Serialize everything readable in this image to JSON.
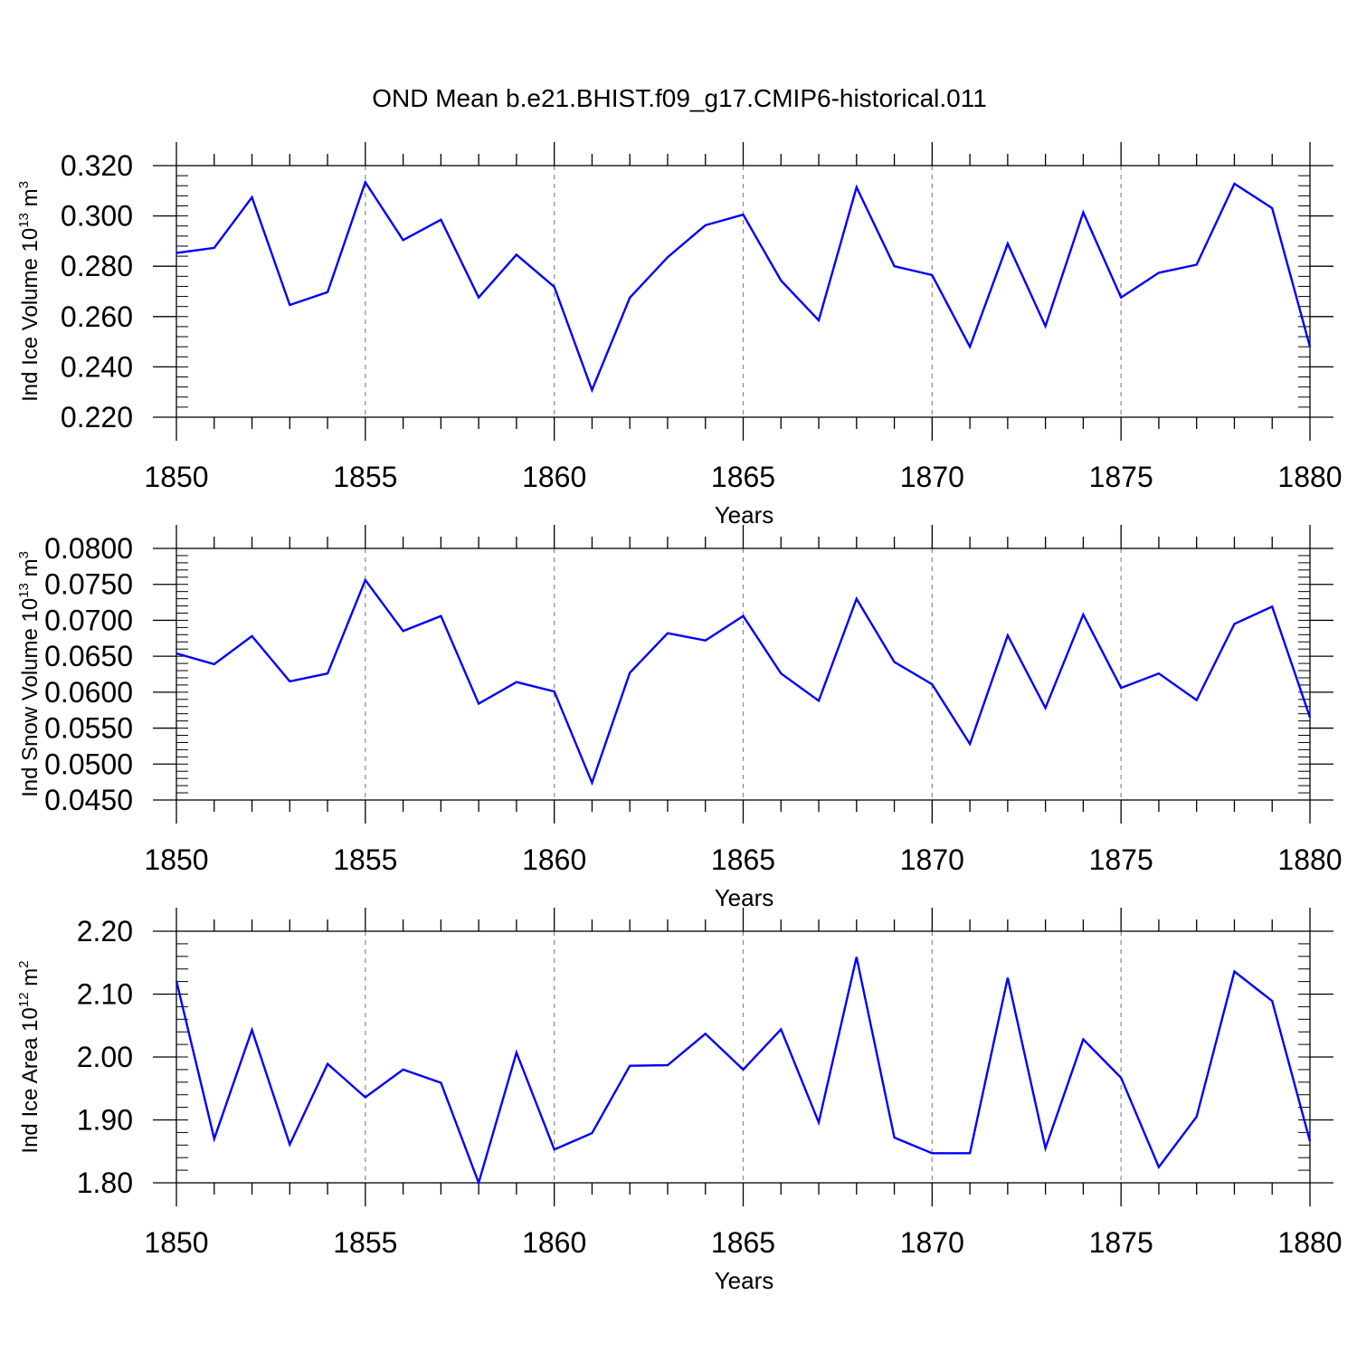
{
  "chart_title": "OND Mean b.e21.BHIST.f09_g17.CMIP6-historical.011",
  "colors": {
    "line": "#0000ff",
    "axis": "#000000",
    "grid": "#888888"
  },
  "chart_data": [
    {
      "type": "line",
      "ylabel": "Ind Ice Volume 10^13 m^3",
      "ylabel_text": "Ind Ice Volume 10",
      "ylabel_exp": "13",
      "ylabel_unit": "m",
      "ylabel_unit_exp": "3",
      "xlabel": "Years",
      "xlim": [
        1850,
        1880
      ],
      "ylim": [
        0.22,
        0.32
      ],
      "yticks": [
        "0.220",
        "0.240",
        "0.260",
        "0.280",
        "0.300",
        "0.320"
      ],
      "xticks": [
        "1850",
        "1855",
        "1860",
        "1865",
        "1870",
        "1875",
        "1880"
      ],
      "grid": "vertical dashed at major x ticks",
      "x": [
        1850,
        1851,
        1852,
        1853,
        1854,
        1855,
        1856,
        1857,
        1858,
        1859,
        1860,
        1861,
        1862,
        1863,
        1864,
        1865,
        1866,
        1867,
        1868,
        1869,
        1870,
        1871,
        1872,
        1873,
        1874,
        1875,
        1876,
        1877,
        1878,
        1879,
        1880
      ],
      "values": [
        0.2853,
        0.2873,
        0.3074,
        0.2646,
        0.2697,
        0.3134,
        0.2904,
        0.2985,
        0.2676,
        0.2846,
        0.2718,
        0.2308,
        0.2675,
        0.2836,
        0.2963,
        0.3005,
        0.2743,
        0.2585,
        0.3114,
        0.28,
        0.2765,
        0.248,
        0.289,
        0.2562,
        0.3014,
        0.2676,
        0.2774,
        0.2806,
        0.3128,
        0.3031,
        0.248
      ]
    },
    {
      "type": "line",
      "ylabel": "Ind Snow Volume 10^13 m^3",
      "ylabel_text": "Ind Snow Volume 10",
      "ylabel_exp": "13",
      "ylabel_unit": "m",
      "ylabel_unit_exp": "3",
      "xlabel": "Years",
      "xlim": [
        1850,
        1880
      ],
      "ylim": [
        0.045,
        0.08
      ],
      "yticks": [
        "0.0450",
        "0.0500",
        "0.0550",
        "0.0600",
        "0.0650",
        "0.0700",
        "0.0750",
        "0.0800"
      ],
      "xticks": [
        "1850",
        "1855",
        "1860",
        "1865",
        "1870",
        "1875",
        "1880"
      ],
      "grid": "vertical dashed at major x ticks",
      "x": [
        1850,
        1851,
        1852,
        1853,
        1854,
        1855,
        1856,
        1857,
        1858,
        1859,
        1860,
        1861,
        1862,
        1863,
        1864,
        1865,
        1866,
        1867,
        1868,
        1869,
        1870,
        1871,
        1872,
        1873,
        1874,
        1875,
        1876,
        1877,
        1878,
        1879,
        1880
      ],
      "values": [
        0.0654,
        0.0639,
        0.0678,
        0.0615,
        0.0626,
        0.0756,
        0.0685,
        0.0706,
        0.0584,
        0.0614,
        0.0601,
        0.0474,
        0.0627,
        0.0682,
        0.0672,
        0.0706,
        0.0626,
        0.0588,
        0.073,
        0.0642,
        0.0611,
        0.0528,
        0.0679,
        0.0578,
        0.0708,
        0.0606,
        0.0626,
        0.0589,
        0.0695,
        0.0719,
        0.0565
      ]
    },
    {
      "type": "line",
      "ylabel": "Ind Ice Area 10^12 m^2",
      "ylabel_text": "Ind Ice Area 10",
      "ylabel_exp": "12",
      "ylabel_unit": "m",
      "ylabel_unit_exp": "2",
      "xlabel": "Years",
      "xlim": [
        1850,
        1880
      ],
      "ylim": [
        1.8,
        2.2
      ],
      "yticks": [
        "1.80",
        "1.90",
        "2.00",
        "2.10",
        "2.20"
      ],
      "xticks": [
        "1850",
        "1855",
        "1860",
        "1865",
        "1870",
        "1875",
        "1880"
      ],
      "grid": "vertical dashed at major x ticks",
      "x": [
        1850,
        1851,
        1852,
        1853,
        1854,
        1855,
        1856,
        1857,
        1858,
        1859,
        1860,
        1861,
        1862,
        1863,
        1864,
        1865,
        1866,
        1867,
        1868,
        1869,
        1870,
        1871,
        1872,
        1873,
        1874,
        1875,
        1876,
        1877,
        1878,
        1879,
        1880
      ],
      "values": [
        2.121,
        1.87,
        2.043,
        1.861,
        1.989,
        1.936,
        1.98,
        1.959,
        1.8,
        2.007,
        1.853,
        1.879,
        1.986,
        1.987,
        2.037,
        1.98,
        2.044,
        1.896,
        2.159,
        1.872,
        1.847,
        1.847,
        2.126,
        1.855,
        2.028,
        1.967,
        1.825,
        1.905,
        2.136,
        2.089,
        1.866
      ]
    }
  ]
}
